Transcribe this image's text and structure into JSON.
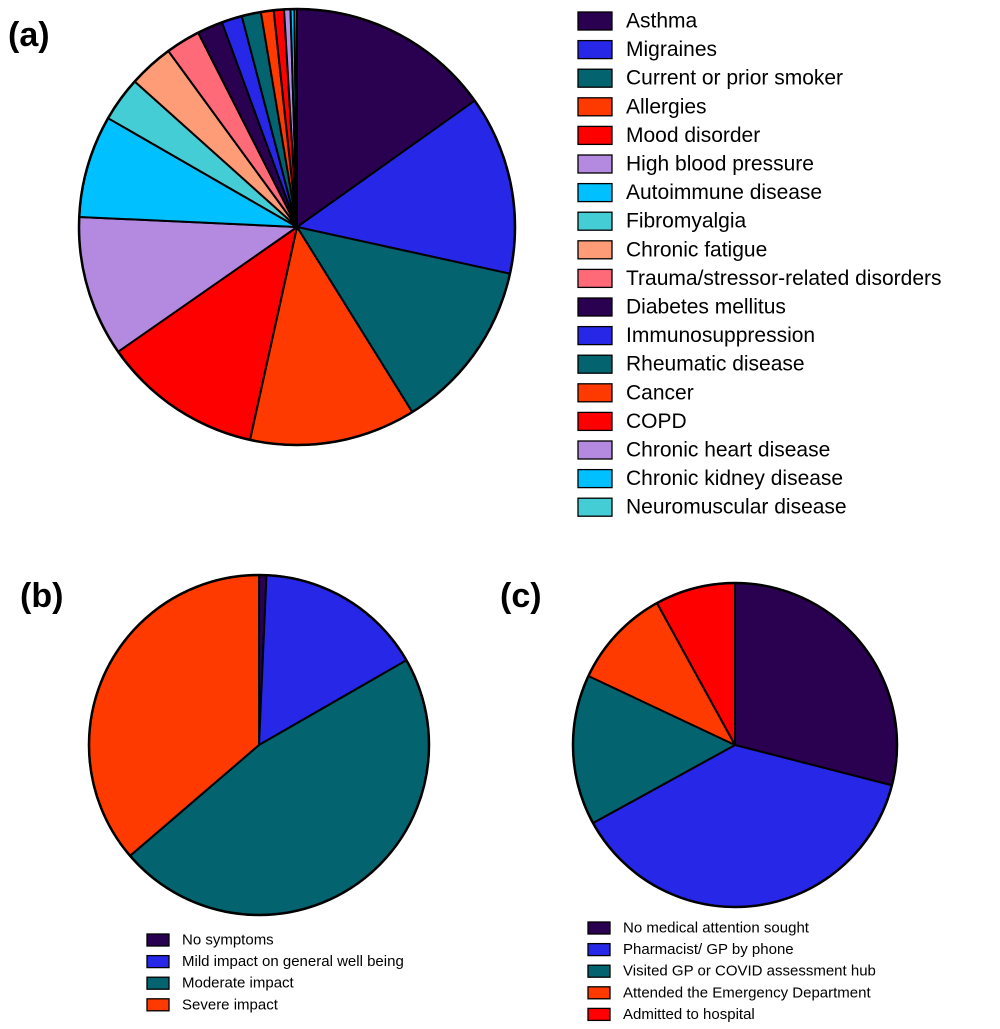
{
  "chart_data": [
    {
      "id": "a",
      "type": "pie",
      "panel_label": "(a)",
      "title": "",
      "legend_position": "right",
      "categories": [
        "Asthma",
        "Migraines",
        "Current or prior smoker",
        "Allergies",
        "Mood disorder",
        "High blood pressure",
        "Autoimmune disease",
        "Fibromyalgia",
        "Chronic fatigue",
        "Trauma/stressor-related disorders",
        "Diabetes mellitus",
        "Immunosuppression",
        "Rheumatic disease",
        "Cancer",
        "COPD",
        "Chronic heart disease",
        "Chronic kidney disease",
        "Neuromuscular disease"
      ],
      "values": [
        16.0,
        14.0,
        13.4,
        13.0,
        12.5,
        11.0,
        8.0,
        3.5,
        3.5,
        2.7,
        2.0,
        1.6,
        1.5,
        1.0,
        0.8,
        0.5,
        0.3,
        0.2
      ],
      "colors": [
        "#2a0050",
        "#2727e8",
        "#03636e",
        "#ff3a00",
        "#ff0000",
        "#b48ae0",
        "#00c0ff",
        "#45cdd6",
        "#ff9c78",
        "#ff6a78",
        "#2a0050",
        "#2727e8",
        "#03636e",
        "#ff3a00",
        "#ff0000",
        "#b48ae0",
        "#00c0ff",
        "#45cdd6"
      ]
    },
    {
      "id": "b",
      "type": "pie",
      "panel_label": "(b)",
      "title": "",
      "legend_position": "bottom",
      "categories": [
        "No symptoms",
        "Mild impact on general well being",
        "Moderate impact",
        "Severe impact"
      ],
      "values": [
        0.7,
        16.0,
        47.0,
        36.3
      ],
      "colors": [
        "#2a0050",
        "#2727e8",
        "#03636e",
        "#ff3a00"
      ]
    },
    {
      "id": "c",
      "type": "pie",
      "panel_label": "(c)",
      "title": "",
      "legend_position": "bottom",
      "categories": [
        "No medical attention sought",
        "Pharmacist/ GP by phone",
        "Visited GP or COVID assessment hub",
        "Attended the Emergency Department",
        "Admitted to hospital"
      ],
      "values": [
        29.0,
        38.0,
        15.0,
        10.0,
        8.0
      ],
      "colors": [
        "#2a0050",
        "#2727e8",
        "#03636e",
        "#ff3a00",
        "#ff0000"
      ]
    }
  ]
}
